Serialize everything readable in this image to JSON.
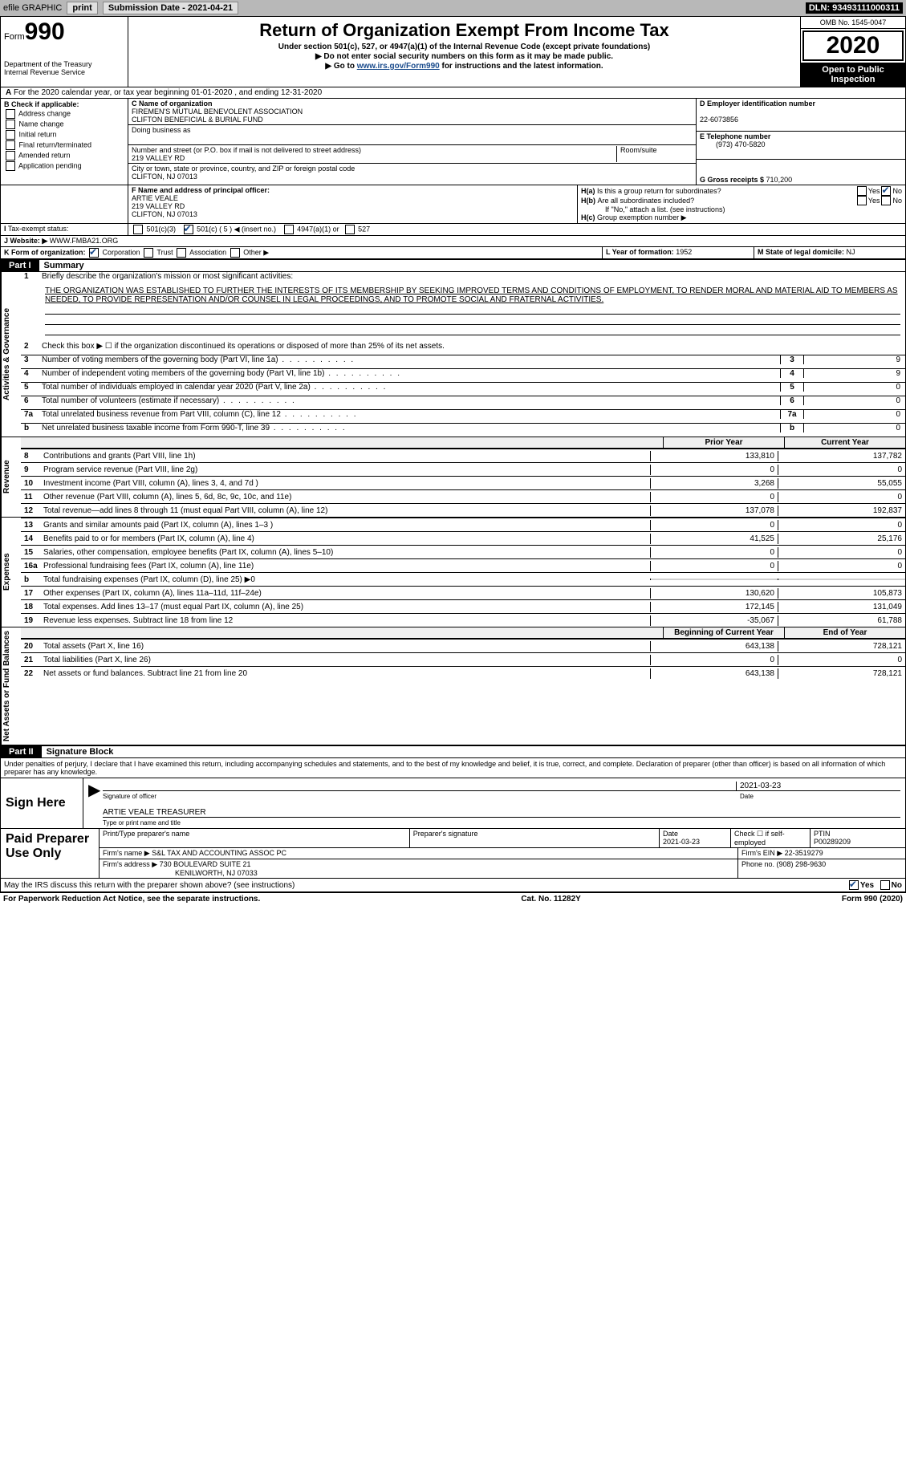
{
  "topbar": {
    "efile": "efile GRAPHIC",
    "print": "print",
    "submission_label": "Submission Date - ",
    "submission_date": "2021-04-21",
    "dln_label": "DLN: ",
    "dln": "93493111000311"
  },
  "header": {
    "form_prefix": "Form",
    "form_number": "990",
    "dept": "Department of the Treasury",
    "irs": "Internal Revenue Service",
    "title": "Return of Organization Exempt From Income Tax",
    "sub1": "Under section 501(c), 527, or 4947(a)(1) of the Internal Revenue Code (except private foundations)",
    "sub2": "▶ Do not enter social security numbers on this form as it may be made public.",
    "sub3_pre": "▶ Go to ",
    "sub3_link": "www.irs.gov/Form990",
    "sub3_post": " for instructions and the latest information.",
    "omb": "OMB No. 1545-0047",
    "year": "2020",
    "open": "Open to Public Inspection"
  },
  "lineA": "For the 2020 calendar year, or tax year beginning 01-01-2020    , and ending 12-31-2020",
  "boxB": {
    "label": "B Check if applicable:",
    "opts": [
      "Address change",
      "Name change",
      "Initial return",
      "Final return/terminated",
      "Amended return",
      "Application pending"
    ]
  },
  "boxC": {
    "label": "C Name of organization",
    "name1": "FIREMEN'S MUTUAL BENEVOLENT ASSOCIATION",
    "name2": "CLIFTON BENEFICIAL & BURIAL FUND",
    "dba_label": "Doing business as",
    "street_label": "Number and street (or P.O. box if mail is not delivered to street address)",
    "room_label": "Room/suite",
    "street": "219 VALLEY RD",
    "city_label": "City or town, state or province, country, and ZIP or foreign postal code",
    "city": "CLIFTON, NJ  07013"
  },
  "boxD": {
    "label": "D Employer identification number",
    "ein": "22-6073856"
  },
  "boxE": {
    "label": "E Telephone number",
    "phone": "(973) 470-5820"
  },
  "boxG": {
    "label": "G Gross receipts $ ",
    "val": "710,200"
  },
  "boxF": {
    "label": "F Name and address of principal officer:",
    "name": "ARTIE VEALE",
    "addr1": "219 VALLEY RD",
    "addr2": "CLIFTON, NJ  07013"
  },
  "boxH": {
    "a_label": "Is this a group return for subordinates?",
    "a_yes": "Yes",
    "a_no": "No",
    "b_label": "Are all subordinates included?",
    "b_note": "If \"No,\" attach a list. (see instructions)",
    "c_label": "Group exemption number ▶"
  },
  "boxI": {
    "label": "Tax-exempt status:",
    "o1": "501(c)(3)",
    "o2_pre": "501(c) ( ",
    "o2_num": "5",
    "o2_post": " ) ◀ (insert no.)",
    "o3": "4947(a)(1) or",
    "o4": "527"
  },
  "boxJ": {
    "label": "Website: ▶ ",
    "val": "WWW.FMBA21.ORG"
  },
  "boxK": {
    "label": "K Form of organization:",
    "o1": "Corporation",
    "o2": "Trust",
    "o3": "Association",
    "o4": "Other ▶"
  },
  "boxL": {
    "label": "L Year of formation: ",
    "val": "1952"
  },
  "boxM": {
    "label": "M State of legal domicile: ",
    "val": "NJ"
  },
  "part1": {
    "tag": "Part I",
    "title": "Summary"
  },
  "mission_label": "Briefly describe the organization's mission or most significant activities:",
  "mission": "THE ORGANIZATION WAS ESTABLISHED TO FURTHER THE INTERESTS OF ITS MEMBERSHIP BY SEEKING IMPROVED TERMS AND CONDITIONS OF EMPLOYMENT, TO RENDER MORAL AND MATERIAL AID TO MEMBERS AS NEEDED, TO PROVIDE REPRESENTATION AND/OR COUNSEL IN LEGAL PROCEEDINGS, AND TO PROMOTE SOCIAL AND FRATERNAL ACTIVITIES.",
  "line2": "Check this box ▶ ☐ if the organization discontinued its operations or disposed of more than 25% of its net assets.",
  "lines_gov": [
    {
      "n": "3",
      "d": "Number of voting members of the governing body (Part VI, line 1a)",
      "v": "9"
    },
    {
      "n": "4",
      "d": "Number of independent voting members of the governing body (Part VI, line 1b)",
      "v": "9"
    },
    {
      "n": "5",
      "d": "Total number of individuals employed in calendar year 2020 (Part V, line 2a)",
      "v": "0"
    },
    {
      "n": "6",
      "d": "Total number of volunteers (estimate if necessary)",
      "v": "0"
    },
    {
      "n": "7a",
      "d": "Total unrelated business revenue from Part VIII, column (C), line 12",
      "v": "0"
    },
    {
      "n": "b",
      "d": "Net unrelated business taxable income from Form 990-T, line 39",
      "v": "0"
    }
  ],
  "col_hdr": {
    "c1": "Prior Year",
    "c2": "Current Year"
  },
  "col_hdr2": {
    "c1": "Beginning of Current Year",
    "c2": "End of Year"
  },
  "vtabs": {
    "gov": "Activities & Governance",
    "rev": "Revenue",
    "exp": "Expenses",
    "net": "Net Assets or Fund Balances"
  },
  "rev_rows": [
    {
      "n": "8",
      "d": "Contributions and grants (Part VIII, line 1h)",
      "c1": "133,810",
      "c2": "137,782"
    },
    {
      "n": "9",
      "d": "Program service revenue (Part VIII, line 2g)",
      "c1": "0",
      "c2": "0"
    },
    {
      "n": "10",
      "d": "Investment income (Part VIII, column (A), lines 3, 4, and 7d )",
      "c1": "3,268",
      "c2": "55,055"
    },
    {
      "n": "11",
      "d": "Other revenue (Part VIII, column (A), lines 5, 6d, 8c, 9c, 10c, and 11e)",
      "c1": "0",
      "c2": "0"
    },
    {
      "n": "12",
      "d": "Total revenue—add lines 8 through 11 (must equal Part VIII, column (A), line 12)",
      "c1": "137,078",
      "c2": "192,837"
    }
  ],
  "exp_rows": [
    {
      "n": "13",
      "d": "Grants and similar amounts paid (Part IX, column (A), lines 1–3 )",
      "c1": "0",
      "c2": "0"
    },
    {
      "n": "14",
      "d": "Benefits paid to or for members (Part IX, column (A), line 4)",
      "c1": "41,525",
      "c2": "25,176"
    },
    {
      "n": "15",
      "d": "Salaries, other compensation, employee benefits (Part IX, column (A), lines 5–10)",
      "c1": "0",
      "c2": "0"
    },
    {
      "n": "16a",
      "d": "Professional fundraising fees (Part IX, column (A), line 11e)",
      "c1": "0",
      "c2": "0"
    },
    {
      "n": "b",
      "d": "Total fundraising expenses (Part IX, column (D), line 25) ▶0",
      "c1": "grey",
      "c2": "grey"
    },
    {
      "n": "17",
      "d": "Other expenses (Part IX, column (A), lines 11a–11d, 11f–24e)",
      "c1": "130,620",
      "c2": "105,873"
    },
    {
      "n": "18",
      "d": "Total expenses. Add lines 13–17 (must equal Part IX, column (A), line 25)",
      "c1": "172,145",
      "c2": "131,049"
    },
    {
      "n": "19",
      "d": "Revenue less expenses. Subtract line 18 from line 12",
      "c1": "-35,067",
      "c2": "61,788"
    }
  ],
  "net_rows": [
    {
      "n": "20",
      "d": "Total assets (Part X, line 16)",
      "c1": "643,138",
      "c2": "728,121"
    },
    {
      "n": "21",
      "d": "Total liabilities (Part X, line 26)",
      "c1": "0",
      "c2": "0"
    },
    {
      "n": "22",
      "d": "Net assets or fund balances. Subtract line 21 from line 20",
      "c1": "643,138",
      "c2": "728,121"
    }
  ],
  "part2": {
    "tag": "Part II",
    "title": "Signature Block"
  },
  "penalties": "Under penalties of perjury, I declare that I have examined this return, including accompanying schedules and statements, and to the best of my knowledge and belief, it is true, correct, and complete. Declaration of preparer (other than officer) is based on all information of which preparer has any knowledge.",
  "sign": {
    "here": "Sign Here",
    "sig_officer": "Signature of officer",
    "date_label": "Date",
    "date": "2021-03-23",
    "name_title": "ARTIE VEALE  TREASURER",
    "type_label": "Type or print name and title"
  },
  "paid": {
    "label": "Paid Preparer Use Only",
    "h1": "Print/Type preparer's name",
    "h2": "Preparer's signature",
    "h3_label": "Date",
    "h3": "2021-03-23",
    "h4_label": "Check ☐ if self-employed",
    "h5_label": "PTIN",
    "h5": "P00289209",
    "firm_name_label": "Firm's name    ▶ ",
    "firm_name": "S&L TAX AND ACCOUNTING ASSOC PC",
    "firm_ein_label": "Firm's EIN ▶ ",
    "firm_ein": "22-3519279",
    "firm_addr_label": "Firm's address ▶ ",
    "firm_addr1": "730 BOULEVARD SUITE 21",
    "firm_addr2": "KENILWORTH, NJ  07033",
    "phone_label": "Phone no. ",
    "phone": "(908) 298-9630"
  },
  "discuss": {
    "q": "May the IRS discuss this return with the preparer shown above? (see instructions)",
    "yes": "Yes",
    "no": "No"
  },
  "footer": {
    "left": "For Paperwork Reduction Act Notice, see the separate instructions.",
    "mid": "Cat. No. 11282Y",
    "right": "Form 990 (2020)"
  }
}
